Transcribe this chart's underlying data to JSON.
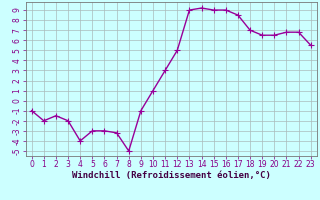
{
  "xlabel": "Windchill (Refroidissement éolien,°C)",
  "x_values": [
    0,
    1,
    2,
    3,
    4,
    5,
    6,
    7,
    8,
    9,
    10,
    11,
    12,
    13,
    14,
    15,
    16,
    17,
    18,
    19,
    20,
    21,
    22,
    23
  ],
  "y_values": [
    -1,
    -2,
    -1.5,
    -2,
    -4,
    -3,
    -3,
    -3.2,
    -5,
    -1,
    1,
    3,
    5,
    9,
    9.2,
    9,
    9,
    8.5,
    7,
    6.5,
    6.5,
    6.8,
    6.8,
    5.5
  ],
  "ylim": [
    -5.5,
    9.8
  ],
  "xlim": [
    -0.5,
    23.5
  ],
  "yticks": [
    -5,
    -4,
    -3,
    -2,
    -1,
    0,
    1,
    2,
    3,
    4,
    5,
    6,
    7,
    8,
    9
  ],
  "xticks": [
    0,
    1,
    2,
    3,
    4,
    5,
    6,
    7,
    8,
    9,
    10,
    11,
    12,
    13,
    14,
    15,
    16,
    17,
    18,
    19,
    20,
    21,
    22,
    23
  ],
  "line_color": "#990099",
  "marker": "+",
  "marker_size": 4,
  "bg_color": "#ccffff",
  "grid_color": "#aabbbb",
  "spine_color": "#777777",
  "tick_label_color": "#880088",
  "xlabel_color": "#440044",
  "line_width": 1.0,
  "tick_fontsize": 5.5,
  "xlabel_fontsize": 6.5
}
